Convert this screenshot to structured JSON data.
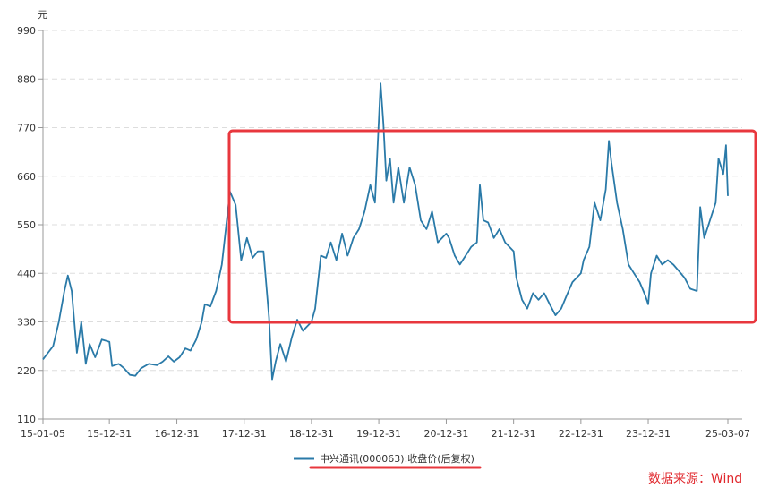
{
  "chart_data": {
    "type": "line",
    "ylabel": "元",
    "ylim": [
      110,
      990
    ],
    "y_ticks": [
      110,
      220,
      330,
      440,
      550,
      660,
      770,
      880,
      990
    ],
    "x_tick_labels": [
      "15-01-05",
      "15-12-31",
      "16-12-31",
      "17-12-31",
      "18-12-31",
      "19-12-31",
      "20-12-31",
      "21-12-31",
      "22-12-31",
      "23-12-31",
      "25-03-07"
    ],
    "x_tick_dates": [
      "2015-01-05",
      "2015-12-31",
      "2016-12-31",
      "2017-12-31",
      "2018-12-31",
      "2019-12-31",
      "2020-12-31",
      "2021-12-31",
      "2022-12-31",
      "2023-12-31",
      "2025-03-07"
    ],
    "grid": "horizontal-dashed",
    "legend_position": "bottom-center",
    "series": [
      {
        "name": "中兴通讯(000063):收盘价(后复权)",
        "color": "#2a7aa8",
        "points": [
          [
            "2015-01-05",
            245
          ],
          [
            "2015-02-01",
            260
          ],
          [
            "2015-03-01",
            275
          ],
          [
            "2015-04-01",
            330
          ],
          [
            "2015-05-01",
            400
          ],
          [
            "2015-05-20",
            435
          ],
          [
            "2015-06-10",
            400
          ],
          [
            "2015-07-08",
            260
          ],
          [
            "2015-08-01",
            330
          ],
          [
            "2015-08-25",
            235
          ],
          [
            "2015-09-15",
            280
          ],
          [
            "2015-10-15",
            250
          ],
          [
            "2015-11-20",
            290
          ],
          [
            "2015-12-31",
            285
          ],
          [
            "2016-01-15",
            230
          ],
          [
            "2016-02-20",
            235
          ],
          [
            "2016-03-20",
            225
          ],
          [
            "2016-04-20",
            210
          ],
          [
            "2016-05-20",
            208
          ],
          [
            "2016-06-20",
            225
          ],
          [
            "2016-08-01",
            235
          ],
          [
            "2016-09-15",
            232
          ],
          [
            "2016-10-15",
            240
          ],
          [
            "2016-11-15",
            252
          ],
          [
            "2016-12-15",
            240
          ],
          [
            "2017-01-15",
            250
          ],
          [
            "2017-02-15",
            270
          ],
          [
            "2017-03-15",
            265
          ],
          [
            "2017-04-15",
            290
          ],
          [
            "2017-05-15",
            330
          ],
          [
            "2017-06-01",
            370
          ],
          [
            "2017-07-01",
            365
          ],
          [
            "2017-08-01",
            400
          ],
          [
            "2017-09-01",
            460
          ],
          [
            "2017-10-15",
            625
          ],
          [
            "2017-11-15",
            595
          ],
          [
            "2017-12-15",
            470
          ],
          [
            "2018-01-15",
            520
          ],
          [
            "2018-02-15",
            475
          ],
          [
            "2018-03-15",
            490
          ],
          [
            "2018-04-15",
            490
          ],
          [
            "2018-05-15",
            340
          ],
          [
            "2018-06-01",
            200
          ],
          [
            "2018-06-20",
            240
          ],
          [
            "2018-07-15",
            280
          ],
          [
            "2018-08-15",
            240
          ],
          [
            "2018-09-15",
            295
          ],
          [
            "2018-10-15",
            335
          ],
          [
            "2018-11-15",
            310
          ],
          [
            "2018-12-31",
            330
          ],
          [
            "2019-01-20",
            360
          ],
          [
            "2019-02-20",
            480
          ],
          [
            "2019-03-20",
            475
          ],
          [
            "2019-04-15",
            510
          ],
          [
            "2019-05-15",
            470
          ],
          [
            "2019-06-15",
            530
          ],
          [
            "2019-07-15",
            480
          ],
          [
            "2019-08-15",
            520
          ],
          [
            "2019-09-15",
            540
          ],
          [
            "2019-10-15",
            580
          ],
          [
            "2019-11-15",
            640
          ],
          [
            "2019-12-10",
            600
          ],
          [
            "2020-01-10",
            870
          ],
          [
            "2020-01-25",
            780
          ],
          [
            "2020-02-10",
            650
          ],
          [
            "2020-03-01",
            700
          ],
          [
            "2020-03-20",
            600
          ],
          [
            "2020-04-15",
            680
          ],
          [
            "2020-05-15",
            600
          ],
          [
            "2020-06-15",
            680
          ],
          [
            "2020-07-15",
            640
          ],
          [
            "2020-08-15",
            560
          ],
          [
            "2020-09-15",
            540
          ],
          [
            "2020-10-15",
            580
          ],
          [
            "2020-11-15",
            510
          ],
          [
            "2020-12-31",
            530
          ],
          [
            "2021-01-15",
            520
          ],
          [
            "2021-02-15",
            480
          ],
          [
            "2021-03-15",
            460
          ],
          [
            "2021-04-15",
            480
          ],
          [
            "2021-05-15",
            500
          ],
          [
            "2021-06-15",
            510
          ],
          [
            "2021-07-01",
            640
          ],
          [
            "2021-07-20",
            560
          ],
          [
            "2021-08-15",
            555
          ],
          [
            "2021-09-15",
            520
          ],
          [
            "2021-10-15",
            540
          ],
          [
            "2021-11-15",
            510
          ],
          [
            "2021-12-31",
            490
          ],
          [
            "2022-01-15",
            430
          ],
          [
            "2022-02-15",
            380
          ],
          [
            "2022-03-15",
            360
          ],
          [
            "2022-04-15",
            395
          ],
          [
            "2022-05-15",
            380
          ],
          [
            "2022-06-15",
            395
          ],
          [
            "2022-07-15",
            370
          ],
          [
            "2022-08-15",
            345
          ],
          [
            "2022-09-15",
            360
          ],
          [
            "2022-10-15",
            390
          ],
          [
            "2022-11-15",
            420
          ],
          [
            "2022-12-31",
            440
          ],
          [
            "2023-01-15",
            470
          ],
          [
            "2023-02-15",
            500
          ],
          [
            "2023-03-15",
            600
          ],
          [
            "2023-04-15",
            560
          ],
          [
            "2023-05-15",
            630
          ],
          [
            "2023-06-01",
            740
          ],
          [
            "2023-06-15",
            690
          ],
          [
            "2023-07-15",
            600
          ],
          [
            "2023-08-15",
            540
          ],
          [
            "2023-09-15",
            460
          ],
          [
            "2023-10-15",
            440
          ],
          [
            "2023-11-15",
            420
          ],
          [
            "2023-12-15",
            390
          ],
          [
            "2023-12-31",
            370
          ],
          [
            "2024-01-15",
            440
          ],
          [
            "2024-02-15",
            480
          ],
          [
            "2024-03-15",
            460
          ],
          [
            "2024-04-15",
            470
          ],
          [
            "2024-05-15",
            460
          ],
          [
            "2024-06-15",
            445
          ],
          [
            "2024-07-15",
            430
          ],
          [
            "2024-08-15",
            405
          ],
          [
            "2024-09-20",
            400
          ],
          [
            "2024-10-08",
            590
          ],
          [
            "2024-10-30",
            520
          ],
          [
            "2024-11-30",
            560
          ],
          [
            "2024-12-31",
            600
          ],
          [
            "2025-01-15",
            700
          ],
          [
            "2025-02-10",
            665
          ],
          [
            "2025-02-25",
            730
          ],
          [
            "2025-03-07",
            615
          ]
        ]
      }
    ],
    "annotations": [
      {
        "type": "highlight-box",
        "color": "#e8373d",
        "x_range": [
          "2017-08-01",
          "2025-03-20"
        ],
        "y_range": [
          335,
          765
        ]
      },
      {
        "type": "legend-underline",
        "color": "#e8373d"
      }
    ]
  },
  "source_text": "数据来源：Wind"
}
